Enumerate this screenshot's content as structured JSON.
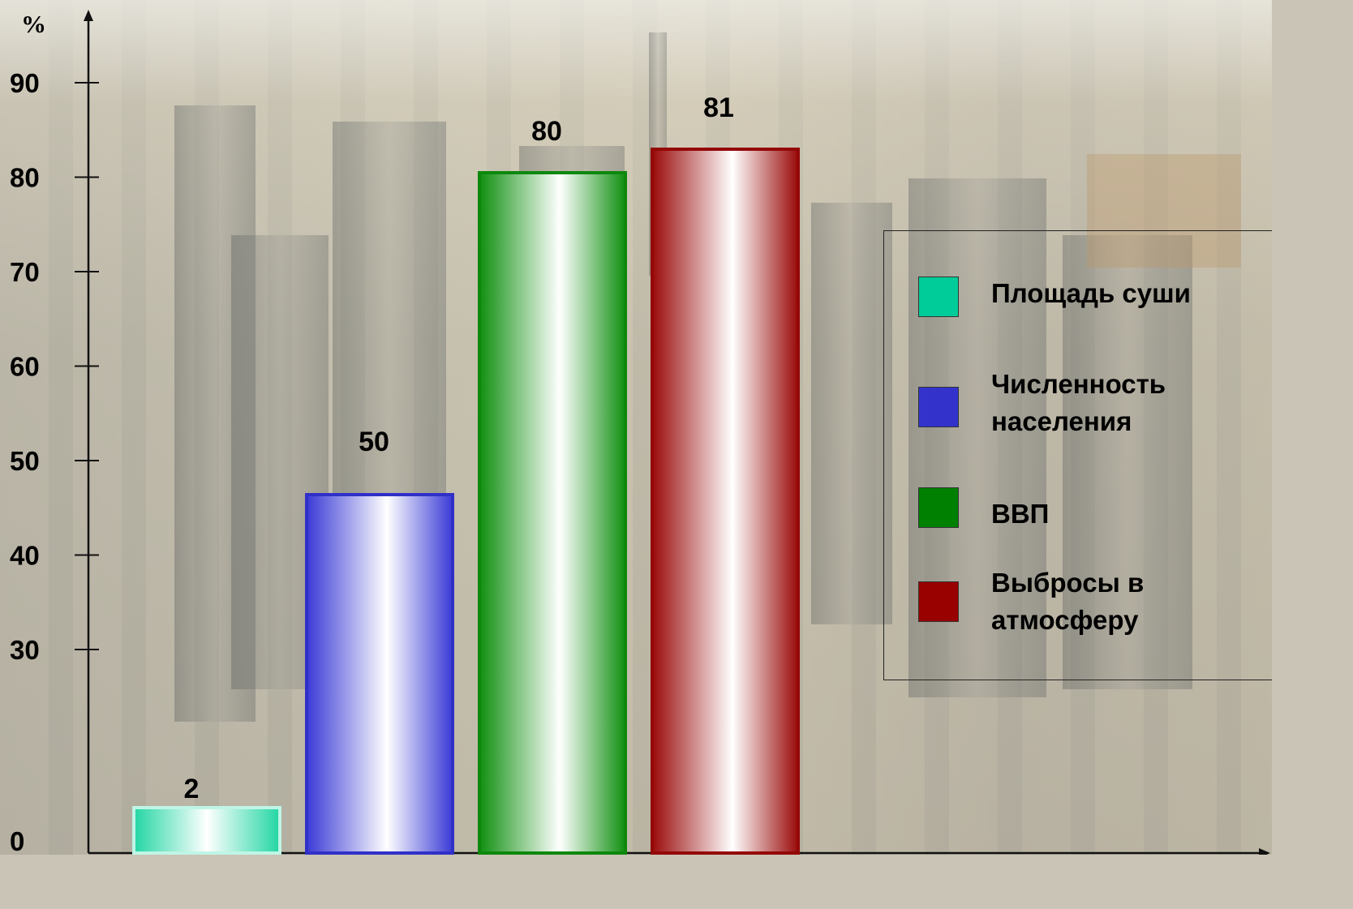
{
  "chart_data": {
    "type": "bar",
    "title": "",
    "ylabel": "%",
    "ylim": [
      0,
      90
    ],
    "y_ticks": [
      "0",
      "30",
      "40",
      "50",
      "60",
      "70",
      "80",
      "90"
    ],
    "categories": [
      "Площадь суши",
      "Численность населения",
      "ВВП",
      "Выбросы в атмосферу"
    ],
    "values": [
      2,
      50,
      80,
      81
    ],
    "value_labels": [
      "2",
      "50",
      "80",
      "81"
    ],
    "colors": [
      "#1ad6a2",
      "#3a3ad6",
      "#0f8f0f",
      "#9a0a0a"
    ],
    "legend": {
      "placement": "right",
      "items": [
        {
          "label": "Площадь суши",
          "color": "#00cc99"
        },
        {
          "label": "Численность\nнаселения",
          "color": "#3333cc"
        },
        {
          "label": "ВВП",
          "color": "#008000"
        },
        {
          "label": "Выбросы в\nатмосферу",
          "color": "#990000"
        }
      ]
    },
    "grid": false
  }
}
